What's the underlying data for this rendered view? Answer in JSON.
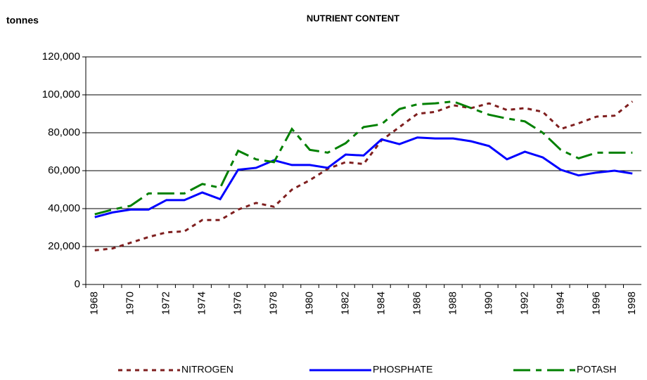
{
  "chart_data": {
    "type": "line",
    "title": "NUTRIENT CONTENT",
    "y_label": "tonnes",
    "categories": [
      "1968",
      null,
      "1970",
      null,
      "1972",
      null,
      "1974",
      null,
      "1976",
      null,
      "1978",
      null,
      "1980",
      null,
      "1982",
      null,
      "1984",
      null,
      "1986",
      null,
      "1988",
      null,
      "1990",
      null,
      "1992",
      null,
      "1994",
      null,
      "1996",
      null,
      "1998"
    ],
    "series": [
      {
        "name": "NITROGEN",
        "color": "#7f1f1f",
        "dash": "6,6",
        "values": [
          18000,
          19000,
          22000,
          25000,
          27500,
          28000,
          34000,
          34000,
          39500,
          43000,
          41000,
          50000,
          55000,
          61000,
          64500,
          63500,
          76000,
          83000,
          90000,
          91000,
          94500,
          93000,
          95500,
          92000,
          93000,
          91000,
          82000,
          85000,
          88500,
          89000,
          96500
        ]
      },
      {
        "name": "PHOSPHATE",
        "color": "#0000ff",
        "dash": "none",
        "values": [
          35500,
          38000,
          39500,
          39500,
          44500,
          44500,
          48500,
          45000,
          60500,
          61500,
          65500,
          63000,
          63000,
          61500,
          68500,
          68000,
          76500,
          74000,
          77500,
          77000,
          77000,
          75500,
          73000,
          66000,
          70000,
          67000,
          60500,
          57500,
          59000,
          60000,
          58500
        ]
      },
      {
        "name": "POTASH",
        "color": "#008000",
        "dash": "24,8,8,8",
        "values": [
          37000,
          39500,
          41500,
          48000,
          48000,
          48000,
          53000,
          51000,
          70500,
          66000,
          64500,
          82000,
          71000,
          69500,
          74500,
          83000,
          84500,
          92500,
          95000,
          95500,
          96500,
          93000,
          89500,
          87500,
          86000,
          80000,
          71000,
          66500,
          69500,
          69500,
          69500
        ]
      }
    ],
    "ylim": [
      0,
      120000
    ],
    "yticks": [
      0,
      {
        "value": 20000,
        "label": "20,000"
      },
      {
        "value": 40000,
        "label": "40,000"
      },
      {
        "value": 60000,
        "label": "60,000"
      },
      {
        "value": 80000,
        "label": "80,000"
      },
      {
        "value": 100000,
        "label": "100,000"
      },
      {
        "value": 120000,
        "label": "120,000"
      }
    ],
    "grid": true,
    "legend": "bottom"
  }
}
